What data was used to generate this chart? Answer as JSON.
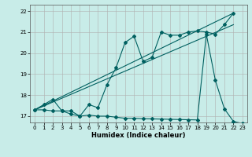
{
  "xlabel": "Humidex (Indice chaleur)",
  "bg_color": "#c8ece8",
  "grid_color": "#b0b0b0",
  "line_color": "#006060",
  "xlim": [
    -0.5,
    23.5
  ],
  "ylim": [
    16.7,
    22.3
  ],
  "xticks": [
    0,
    1,
    2,
    3,
    4,
    5,
    6,
    7,
    8,
    9,
    10,
    11,
    12,
    13,
    14,
    15,
    16,
    17,
    18,
    19,
    20,
    21,
    22,
    23
  ],
  "yticks": [
    17,
    18,
    19,
    20,
    21,
    22
  ],
  "line1_x": [
    0,
    1,
    2,
    3,
    4,
    5,
    6,
    7,
    8,
    9,
    10,
    11,
    12,
    13,
    14,
    15,
    16,
    17,
    18,
    19,
    20,
    21,
    22
  ],
  "line1_y": [
    17.3,
    17.55,
    17.8,
    17.25,
    17.25,
    17.0,
    17.55,
    17.4,
    18.5,
    19.3,
    20.5,
    20.8,
    19.6,
    19.8,
    21.0,
    20.85,
    20.85,
    21.0,
    21.05,
    21.0,
    20.9,
    21.35,
    21.9
  ],
  "line2_x": [
    0,
    22
  ],
  "line2_y": [
    17.3,
    21.9
  ],
  "line3_x": [
    0,
    22
  ],
  "line3_y": [
    17.3,
    21.35
  ],
  "line4_x": [
    0,
    1,
    2,
    3,
    4,
    5,
    6,
    7,
    8,
    9,
    10,
    11,
    12,
    13,
    14,
    15,
    16,
    17,
    18,
    19,
    20,
    21,
    22,
    23
  ],
  "line4_y": [
    17.3,
    17.3,
    17.25,
    17.25,
    17.1,
    17.0,
    17.05,
    17.0,
    17.0,
    16.95,
    16.9,
    16.9,
    16.88,
    16.87,
    16.86,
    16.85,
    16.84,
    16.83,
    16.82,
    20.9,
    18.7,
    17.35,
    16.75,
    16.65
  ]
}
